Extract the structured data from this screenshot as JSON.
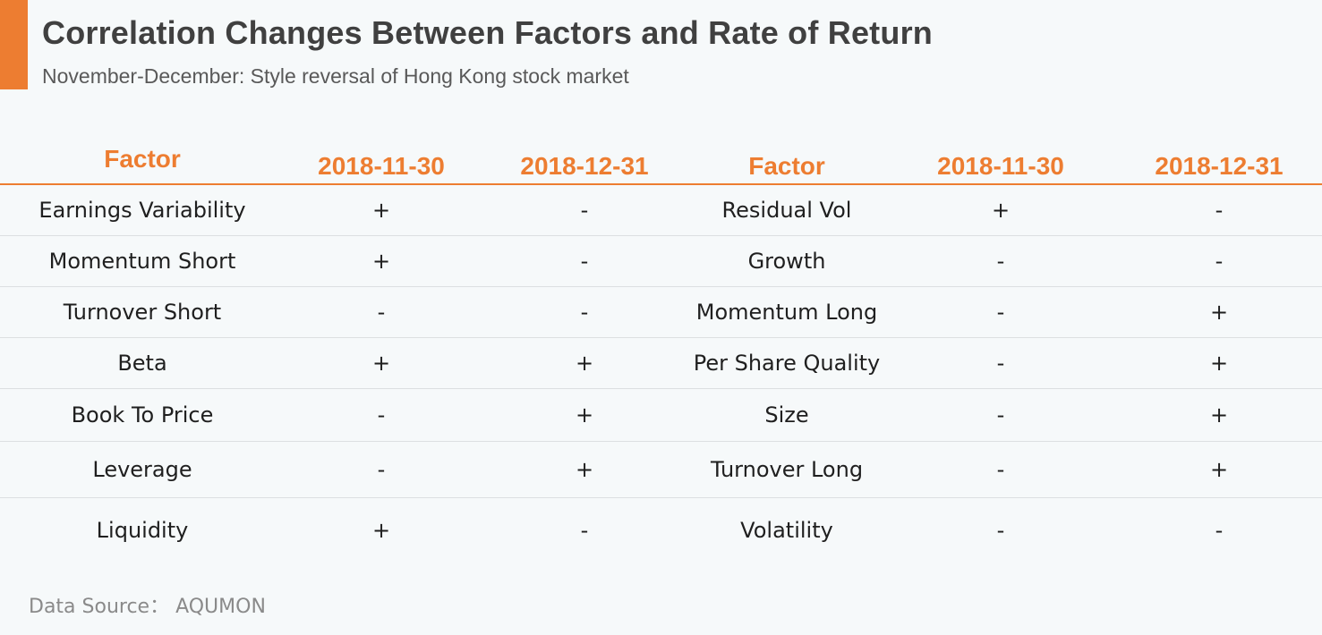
{
  "header": {
    "title": "Correlation Changes Between Factors and Rate of Return",
    "subtitle": "November-December:  Style reversal of Hong Kong stock market",
    "accent_color": "#ed7d31"
  },
  "table": {
    "columns": [
      "Factor",
      "2018-11-30",
      "2018-12-31",
      "Factor",
      "2018-11-30",
      "2018-12-31"
    ],
    "rows": [
      [
        "Earnings Variability",
        "+",
        "-",
        "Residual Vol",
        "+",
        "-"
      ],
      [
        "Momentum Short",
        "+",
        "-",
        "Growth",
        "-",
        "-"
      ],
      [
        "Turnover Short",
        "-",
        "-",
        "Momentum Long",
        "-",
        "+"
      ],
      [
        "Beta",
        "+",
        "+",
        "Per Share Quality",
        "-",
        "+"
      ],
      [
        "Book To Price",
        "-",
        "+",
        "Size",
        "-",
        "+"
      ],
      [
        "Leverage",
        "-",
        "+",
        "Turnover Long",
        "-",
        "+"
      ],
      [
        "Liquidity",
        "+",
        "-",
        "Volatility",
        "-",
        "-"
      ]
    ]
  },
  "footer": {
    "source": "Data Source： AQUMON"
  }
}
